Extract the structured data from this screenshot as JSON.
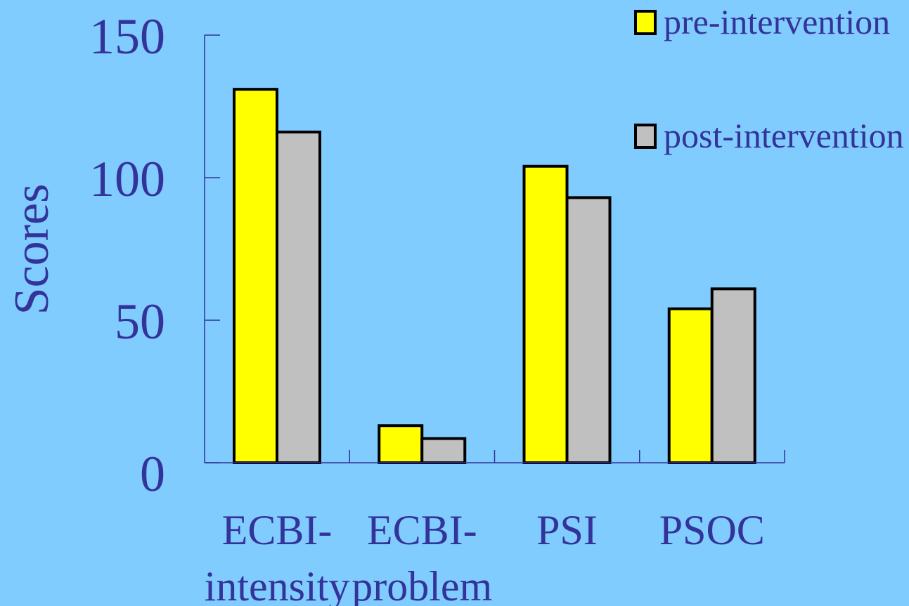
{
  "colors": {
    "background": "#80CCFF",
    "text": "#333399",
    "axis": "#333399",
    "bar_outline": "#000000"
  },
  "chart_data": {
    "type": "bar",
    "title": "",
    "xlabel": "",
    "ylabel": "Scores",
    "ylim": [
      0,
      150
    ],
    "yticks": [
      0,
      50,
      100,
      150
    ],
    "ytick_labels": [
      "0",
      "50",
      "100",
      "150"
    ],
    "grid": false,
    "legend_position": "top-right",
    "categories": [
      {
        "label": "ECBI-intensity",
        "lines": [
          "ECBI-",
          "intensity"
        ]
      },
      {
        "label": "ECBI-problem",
        "lines": [
          "ECBI-",
          "problem"
        ]
      },
      {
        "label": "PSI",
        "lines": [
          "PSI"
        ]
      },
      {
        "label": "PSOC",
        "lines": [
          "PSOC"
        ]
      }
    ],
    "series": [
      {
        "name": "pre-intervention",
        "color": "#FFFF00",
        "values": [
          131,
          13,
          104,
          54
        ]
      },
      {
        "name": "post-intervention",
        "color": "#C0C0C0",
        "values": [
          116,
          8.5,
          93,
          61
        ]
      }
    ]
  }
}
